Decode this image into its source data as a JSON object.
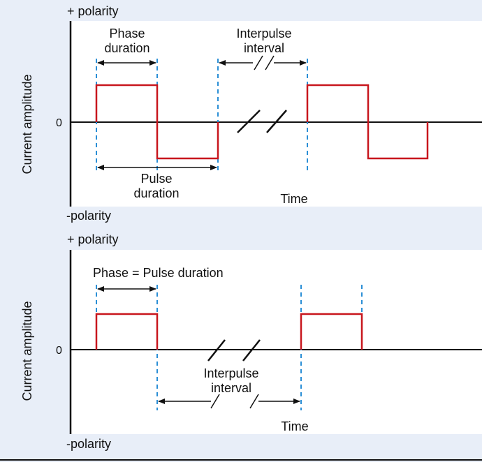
{
  "colors": {
    "background": "#e8eef8",
    "panel": "#ffffff",
    "waveform": "#c8161d",
    "marker": "#2b8fd6",
    "axis": "#111111"
  },
  "top_panel": {
    "positive_polarity": "+ polarity",
    "negative_polarity": "-polarity",
    "y_axis_label": "Current amplitude",
    "zero_label": "0",
    "x_axis_label": "Time",
    "phase_duration_line1": "Phase",
    "phase_duration_line2": "duration",
    "interpulse_line1": "Interpulse",
    "interpulse_line2": "interval",
    "pulse_duration_line1": "Pulse",
    "pulse_duration_line2": "duration"
  },
  "bottom_panel": {
    "positive_polarity": "+ polarity",
    "negative_polarity": "-polarity",
    "y_axis_label": "Current amplitude",
    "zero_label": "0",
    "x_axis_label": "Time",
    "phase_pulse_label": "Phase = Pulse duration",
    "interpulse_line1": "Interpulse",
    "interpulse_line2": "interval"
  }
}
